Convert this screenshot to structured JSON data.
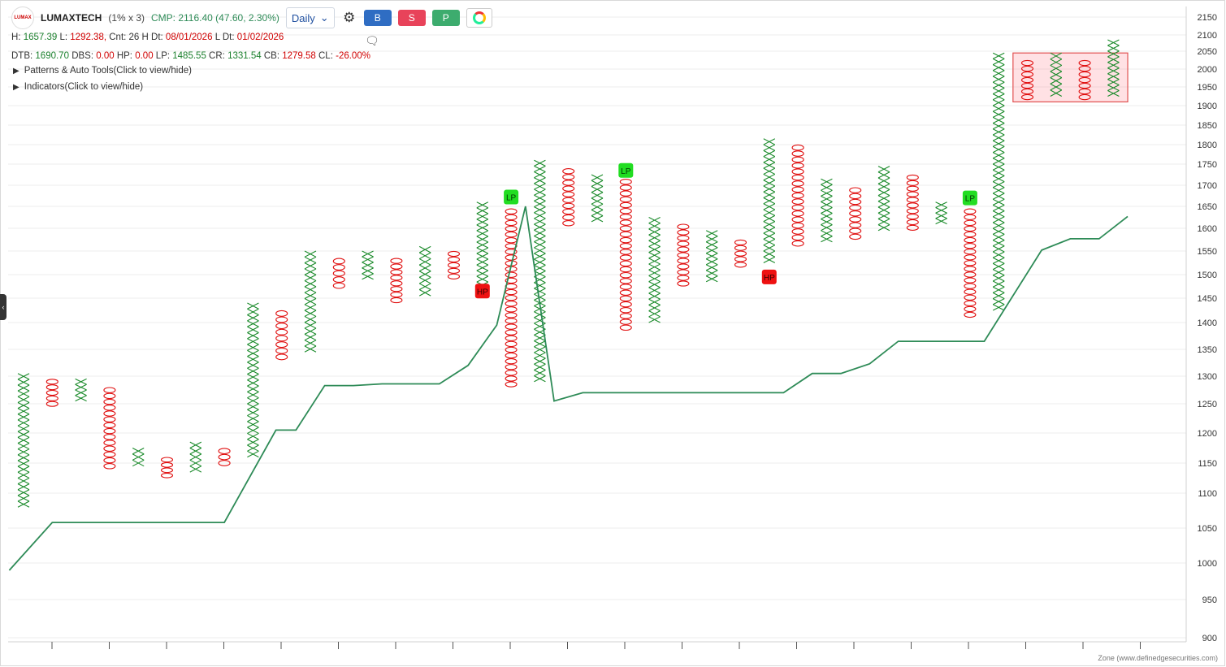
{
  "header": {
    "logo_text": "LUMAX",
    "symbol": "LUMAXTECH",
    "box_size": "(1% x 3)",
    "cmp": "CMP: 2116.40 (47.60, 2.30%)",
    "timeframe": "Daily",
    "buy_label": "B",
    "sell_label": "S",
    "p_label": "P",
    "colors": {
      "buy": "#2f6dc3",
      "sell": "#e8435a",
      "p": "#3dac6e"
    }
  },
  "info_line1": {
    "h_label": "H:",
    "h": "1657.39",
    "l_label": "L:",
    "l": "1292.38,",
    "cnt": "Cnt: 26 H Dt:",
    "h_dt": "08/01/2026",
    "l_dt_label": "L Dt:",
    "l_dt": "01/02/2026"
  },
  "info_line2": {
    "dtb_label": "DTB:",
    "dtb": "1690.70",
    "dbs_label": "DBS:",
    "dbs": "0.00",
    "hp_label": "HP:",
    "hp": "0.00",
    "lp_label": "LP:",
    "lp": "1485.55",
    "cr_label": "CR:",
    "cr": "1331.54",
    "cb_label": "CB:",
    "cb": "1279.58",
    "cl_label": "CL:",
    "cl": "-26.00%"
  },
  "toggles": {
    "patterns": "Patterns & Auto Tools(Click to view/hide)",
    "indicators": "Indicators(Click to view/hide)"
  },
  "footer": "Zone (www.definedgesecurities.com)",
  "chart_data": {
    "type": "point-and-figure",
    "y_axis_ticks": [
      900,
      950,
      1000,
      1050,
      1100,
      1150,
      1200,
      1250,
      1300,
      1350,
      1400,
      1450,
      1500,
      1550,
      1600,
      1650,
      1700,
      1750,
      1800,
      1850,
      1900,
      1950,
      2000,
      2050,
      2100,
      2150
    ],
    "ylim": [
      890,
      2160
    ],
    "grid": "horizontal",
    "colors": {
      "x": "#1a8a2a",
      "o": "#e01010",
      "line": "#2e8b57",
      "lp": "#22dd22",
      "hp": "#ee1111"
    },
    "columns": [
      {
        "type": "X",
        "low": 1080,
        "high": 1305
      },
      {
        "type": "O",
        "low": 1245,
        "high": 1295
      },
      {
        "type": "X",
        "low": 1255,
        "high": 1295
      },
      {
        "type": "O",
        "low": 1140,
        "high": 1280
      },
      {
        "type": "X",
        "low": 1145,
        "high": 1175
      },
      {
        "type": "O",
        "low": 1125,
        "high": 1160
      },
      {
        "type": "X",
        "low": 1135,
        "high": 1185
      },
      {
        "type": "O",
        "low": 1145,
        "high": 1175
      },
      {
        "type": "X",
        "low": 1160,
        "high": 1440
      },
      {
        "type": "O",
        "low": 1330,
        "high": 1425
      },
      {
        "type": "X",
        "low": 1345,
        "high": 1550
      },
      {
        "type": "O",
        "low": 1470,
        "high": 1535
      },
      {
        "type": "X",
        "low": 1490,
        "high": 1550
      },
      {
        "type": "O",
        "low": 1440,
        "high": 1535
      },
      {
        "type": "X",
        "low": 1455,
        "high": 1560
      },
      {
        "type": "O",
        "low": 1490,
        "high": 1550
      },
      {
        "type": "X",
        "low": 1460,
        "high": 1660
      },
      {
        "type": "O",
        "low": 1280,
        "high": 1645
      },
      {
        "type": "X",
        "low": 1290,
        "high": 1760
      },
      {
        "type": "O",
        "low": 1605,
        "high": 1740
      },
      {
        "type": "X",
        "low": 1615,
        "high": 1725
      },
      {
        "type": "O",
        "low": 1385,
        "high": 1715
      },
      {
        "type": "X",
        "low": 1400,
        "high": 1625
      },
      {
        "type": "O",
        "low": 1475,
        "high": 1610
      },
      {
        "type": "X",
        "low": 1485,
        "high": 1595
      },
      {
        "type": "O",
        "low": 1515,
        "high": 1575
      },
      {
        "type": "X",
        "low": 1525,
        "high": 1815
      },
      {
        "type": "O",
        "low": 1560,
        "high": 1800
      },
      {
        "type": "X",
        "low": 1570,
        "high": 1715
      },
      {
        "type": "O",
        "low": 1575,
        "high": 1695
      },
      {
        "type": "X",
        "low": 1595,
        "high": 1745
      },
      {
        "type": "O",
        "low": 1595,
        "high": 1725
      },
      {
        "type": "X",
        "low": 1610,
        "high": 1660
      },
      {
        "type": "O",
        "low": 1410,
        "high": 1645
      },
      {
        "type": "X",
        "low": 1425,
        "high": 2045
      },
      {
        "type": "O",
        "low": 1915,
        "high": 2025
      },
      {
        "type": "X",
        "low": 1925,
        "high": 2045
      },
      {
        "type": "O",
        "low": 1915,
        "high": 2025
      },
      {
        "type": "X",
        "low": 1925,
        "high": 2085
      }
    ],
    "markers": [
      {
        "label": "HP",
        "column": 16,
        "price": 1465,
        "kind": "hp"
      },
      {
        "label": "LP",
        "column": 17,
        "price": 1672,
        "kind": "lp"
      },
      {
        "label": "LP",
        "column": 21,
        "price": 1735,
        "kind": "lp"
      },
      {
        "label": "HP",
        "column": 26,
        "price": 1495,
        "kind": "hp"
      },
      {
        "label": "LP",
        "column": 33,
        "price": 1670,
        "kind": "lp"
      }
    ],
    "trend_line": [
      {
        "column": -0.5,
        "price": 990
      },
      {
        "column": 1,
        "price": 1058
      },
      {
        "column": 7,
        "price": 1058
      },
      {
        "column": 8.8,
        "price": 1205
      },
      {
        "column": 9.5,
        "price": 1205
      },
      {
        "column": 10.5,
        "price": 1283
      },
      {
        "column": 11.5,
        "price": 1283
      },
      {
        "column": 12.5,
        "price": 1286
      },
      {
        "column": 14.5,
        "price": 1286
      },
      {
        "column": 15.5,
        "price": 1320
      },
      {
        "column": 16.5,
        "price": 1395
      },
      {
        "column": 17.5,
        "price": 1650
      },
      {
        "column": 18.5,
        "price": 1255
      },
      {
        "column": 19.5,
        "price": 1270
      },
      {
        "column": 26.5,
        "price": 1270
      },
      {
        "column": 27.5,
        "price": 1305
      },
      {
        "column": 28.5,
        "price": 1305
      },
      {
        "column": 29.5,
        "price": 1323
      },
      {
        "column": 30.5,
        "price": 1365
      },
      {
        "column": 33.5,
        "price": 1365
      },
      {
        "column": 35.5,
        "price": 1552
      },
      {
        "column": 36.5,
        "price": 1577
      },
      {
        "column": 37.5,
        "price": 1577
      },
      {
        "column": 38.5,
        "price": 1627
      }
    ],
    "zone_box": {
      "col_start": 34.5,
      "col_end": 38.5,
      "low": 1910,
      "high": 2045
    }
  }
}
